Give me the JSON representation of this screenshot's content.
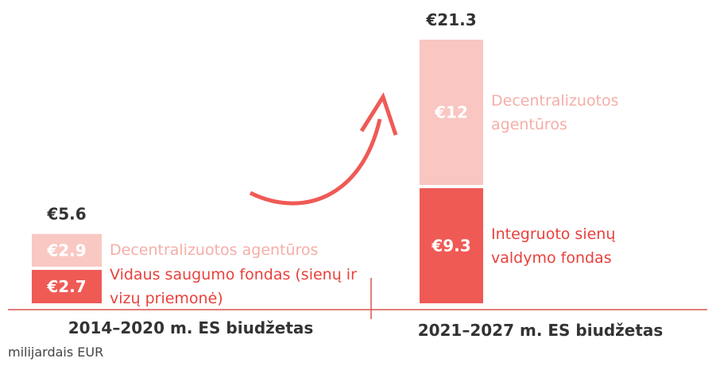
{
  "chart_data": {
    "type": "stacked_bar",
    "bars": [
      {
        "category": "2014–2020 m. ES biudžetas",
        "total": 5.6,
        "total_label": "€5.6",
        "segments": [
          {
            "name": "Vidaus saugumo fondas (sienų ir vizų priemonė)",
            "value": 2.7,
            "value_label": "€2.7",
            "color": "#ef5a55",
            "text_color": "#e8413c"
          },
          {
            "name": "Decentralizuotos agentūros",
            "value": 2.9,
            "value_label": "€2.9",
            "color": "#f9c8c3",
            "text_color": "#f5aea7"
          }
        ]
      },
      {
        "category": "2021–2027 m. ES biudžetas",
        "total": 21.3,
        "total_label": "€21.3",
        "segments": [
          {
            "name": "Integruoto sienų valdymo fondas",
            "value": 9.3,
            "value_label": "€9.3",
            "color": "#ef5a55",
            "text_color": "#e8413c"
          },
          {
            "name": "Decentralizuotos agentūros",
            "value": 12,
            "value_label": "€12",
            "color": "#f9c6c2",
            "text_color": "#f5aea7"
          }
        ]
      }
    ],
    "unit_note": "milijardais EUR"
  }
}
